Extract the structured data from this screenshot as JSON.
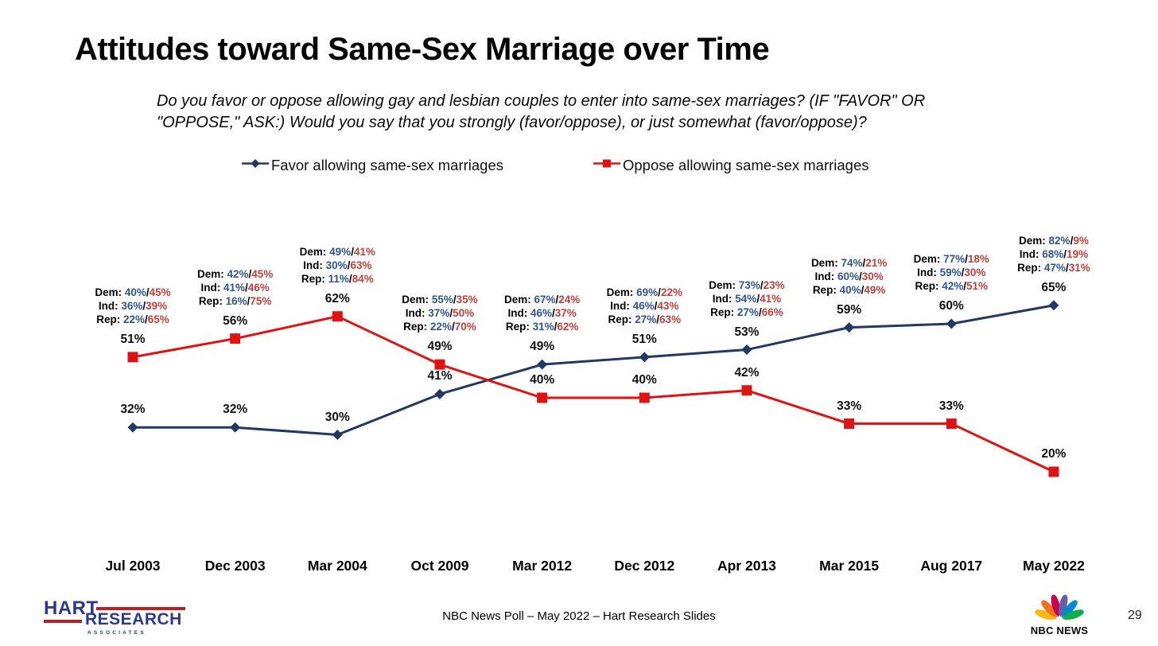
{
  "slide": {
    "title": "Attitudes toward Same-Sex Marriage over Time",
    "subtitle_line1": "Do you favor or oppose allowing gay and lesbian couples to enter into same-sex marriages? (IF \"FAVOR\" OR",
    "subtitle_line2": "\"OPPOSE,\" ASK:) Would you say that you strongly (favor/oppose), or just somewhat (favor/oppose)?",
    "footer_text": "NBC News Poll – May 2022 – Hart Research Slides",
    "page_number": "29"
  },
  "legend": {
    "favor_label": "Favor allowing same-sex marriages",
    "oppose_label": "Oppose allowing same-sex marriages"
  },
  "colors": {
    "favor_line": "#1F3864",
    "oppose_line": "#E01212",
    "annotation_favor_blue": "#2F5496",
    "annotation_oppose_red": "#C0403C",
    "hart_navy": "#2B3990",
    "hart_red": "#B92025",
    "peacock": [
      "#FCB711",
      "#F37021",
      "#CC004C",
      "#6460AA",
      "#0089D0",
      "#0DB14B"
    ]
  },
  "logos": {
    "hart_line1": "HART",
    "hart_line2": "RESEARCH",
    "hart_line3": "ASSOCIATES",
    "nbc_news": "NBC NEWS"
  },
  "chart_data": {
    "type": "line",
    "categories": [
      "Jul 2003",
      "Dec 2003",
      "Mar 2004",
      "Oct 2009",
      "Mar 2012",
      "Dec 2012",
      "Apr 2013",
      "Mar 2015",
      "Aug 2017",
      "May 2022"
    ],
    "series": [
      {
        "name": "Favor allowing same-sex marriages",
        "marker": "diamond",
        "color": "#1F3864",
        "values": [
          32,
          32,
          30,
          41,
          49,
          51,
          53,
          59,
          60,
          65
        ]
      },
      {
        "name": "Oppose allowing same-sex marriages",
        "marker": "square",
        "color": "#E01212",
        "values": [
          51,
          56,
          62,
          49,
          40,
          40,
          42,
          33,
          33,
          20
        ]
      }
    ],
    "value_suffix": "%",
    "ylim": [
      0,
      100
    ],
    "grid": false,
    "axes_shown": false,
    "legend_position": "top",
    "party_breakdown": {
      "row_labels": [
        "Dem:",
        "Ind:",
        "Rep:"
      ],
      "format": "favor%/oppose%",
      "points": [
        {
          "category": "Jul 2003",
          "dem": [
            40,
            45
          ],
          "ind": [
            36,
            39
          ],
          "rep": [
            22,
            65
          ]
        },
        {
          "category": "Dec 2003",
          "dem": [
            42,
            45
          ],
          "ind": [
            41,
            46
          ],
          "rep": [
            16,
            75
          ]
        },
        {
          "category": "Mar 2004",
          "dem": [
            49,
            41
          ],
          "ind": [
            30,
            63
          ],
          "rep": [
            11,
            84
          ]
        },
        {
          "category": "Oct 2009",
          "dem": [
            55,
            35
          ],
          "ind": [
            37,
            50
          ],
          "rep": [
            22,
            70
          ]
        },
        {
          "category": "Mar 2012",
          "dem": [
            67,
            24
          ],
          "ind": [
            46,
            37
          ],
          "rep": [
            31,
            62
          ]
        },
        {
          "category": "Dec 2012",
          "dem": [
            69,
            22
          ],
          "ind": [
            46,
            43
          ],
          "rep": [
            27,
            63
          ]
        },
        {
          "category": "Apr 2013",
          "dem": [
            73,
            23
          ],
          "ind": [
            54,
            41
          ],
          "rep": [
            27,
            66
          ]
        },
        {
          "category": "Mar 2015",
          "dem": [
            74,
            21
          ],
          "ind": [
            60,
            30
          ],
          "rep": [
            40,
            49
          ]
        },
        {
          "category": "Aug 2017",
          "dem": [
            77,
            18
          ],
          "ind": [
            59,
            30
          ],
          "rep": [
            42,
            51
          ]
        },
        {
          "category": "May 2022",
          "dem": [
            82,
            9
          ],
          "ind": [
            68,
            19
          ],
          "rep": [
            47,
            31
          ]
        }
      ]
    }
  }
}
